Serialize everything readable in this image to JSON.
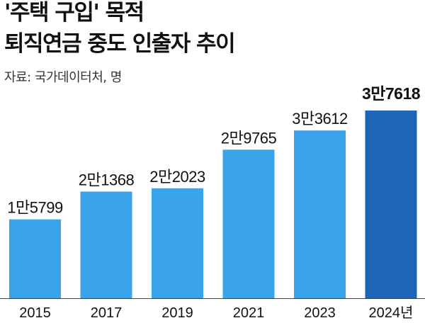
{
  "header": {
    "title_line1": "'주택 구입' 목적",
    "title_line2": "퇴직연금 중도 인출자 추이",
    "source": "자료: 국가데이터처, 명"
  },
  "colors": {
    "bar": "#3aa3ea",
    "bar_highlight": "#1f64b6",
    "axis": "#444444"
  },
  "chart_data": {
    "type": "bar",
    "title": "'주택 구입' 목적 퇴직연금 중도 인출자 추이",
    "categories": [
      "2015",
      "2017",
      "2019",
      "2021",
      "2023",
      "2024년"
    ],
    "values": [
      15799,
      21368,
      22023,
      29765,
      33612,
      37618
    ],
    "value_labels": [
      "1만5799",
      "2만1368",
      "2만2023",
      "2만9765",
      "3만3612",
      "3만7618"
    ],
    "highlight_index": 5,
    "xlabel": "",
    "ylabel": "",
    "ylim": [
      0,
      37618
    ],
    "grid": false,
    "legend": "none"
  }
}
